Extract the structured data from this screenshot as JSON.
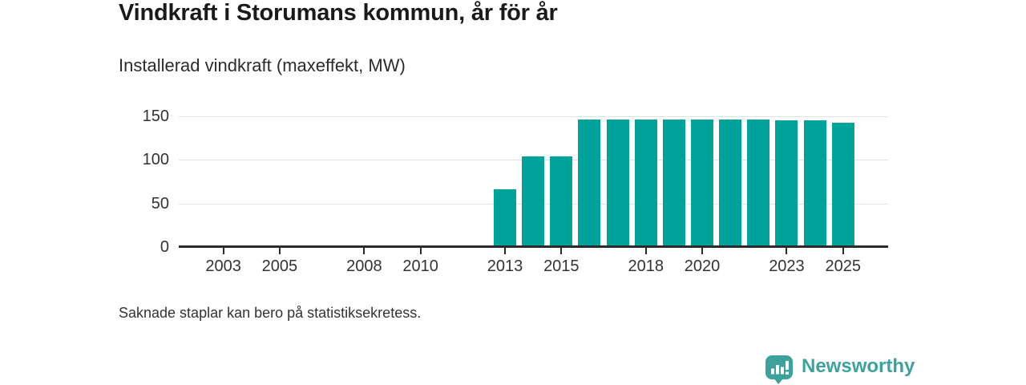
{
  "chart_data": {
    "type": "bar",
    "title": "Vindkraft i Storumans kommun, år för år",
    "subtitle": "Installerad vindkraft (maxeffekt, MW)",
    "categories": [
      2002,
      2003,
      2004,
      2005,
      2006,
      2007,
      2008,
      2009,
      2010,
      2011,
      2012,
      2013,
      2014,
      2015,
      2016,
      2017,
      2018,
      2019,
      2020,
      2021,
      2022,
      2023,
      2024,
      2025
    ],
    "values": [
      null,
      null,
      null,
      null,
      null,
      null,
      null,
      null,
      null,
      null,
      null,
      66,
      104,
      104,
      146,
      146,
      146,
      146,
      146,
      146,
      146,
      145,
      145,
      143
    ],
    "x_tick_labels": [
      "2003",
      "2005",
      "2008",
      "2010",
      "2013",
      "2015",
      "2018",
      "2020",
      "2023",
      "2025"
    ],
    "y_ticks": [
      0,
      50,
      100,
      150
    ],
    "ylim": [
      0,
      150
    ],
    "xlabel": "",
    "ylabel": "Installerad vindkraft (maxeffekt, MW)",
    "grid": "horizontal",
    "legend": "none",
    "bar_color": "#00a39b",
    "footnote": "Saknade staplar kan bero på statistiksekretess."
  },
  "logo": {
    "text": "Newsworthy",
    "icon": "newsworthy-bar-chart-bubble-icon",
    "color": "#3ba39c"
  },
  "colors": {
    "bar": "#00a39b",
    "axis": "#2b2b2b",
    "grid": "#e2e2e2",
    "title": "#1a1a1a",
    "text": "#333333",
    "logo": "#3ba39c"
  }
}
